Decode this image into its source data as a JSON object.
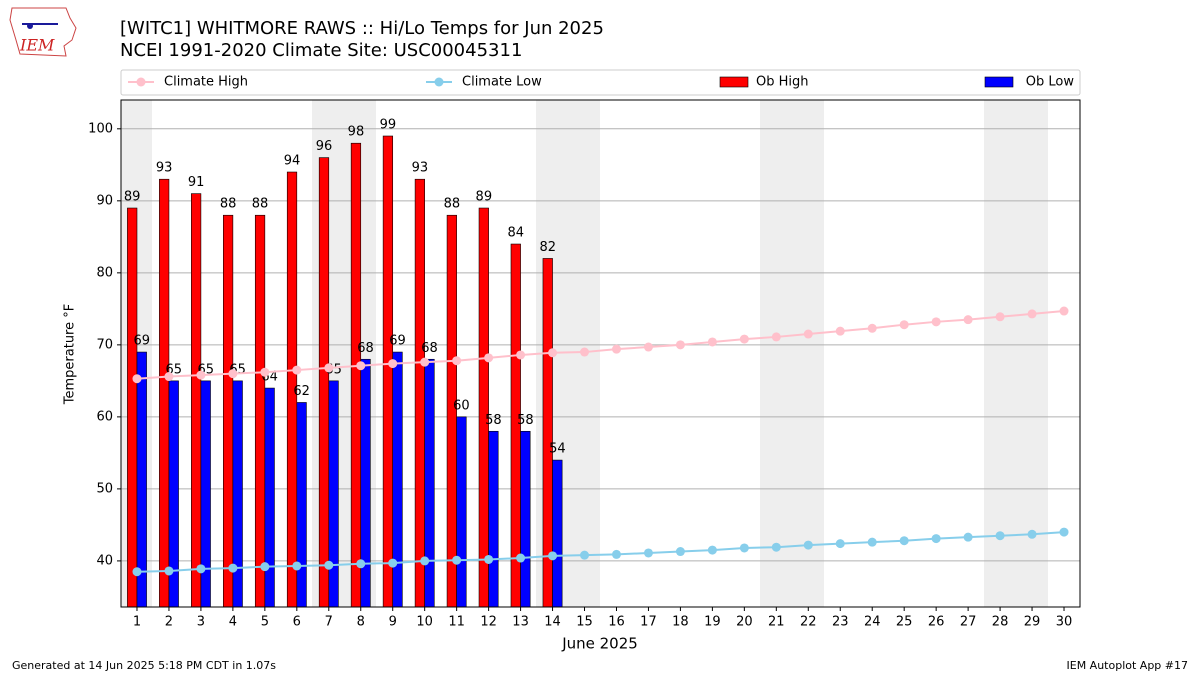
{
  "logo_text": "IEM",
  "footer_left": "Generated at 14 Jun 2025 5:18 PM CDT in 1.07s",
  "footer_right": "IEM Autoplot App #17",
  "chart_data": {
    "type": "bar",
    "title": "[WITC1] WHITMORE RAWS :: Hi/Lo Temps for Jun 2025",
    "subtitle": "NCEI 1991-2020 Climate Site: USC00045311",
    "x_label": "June 2025",
    "y_label": "Temperature °F",
    "x": [
      1,
      2,
      3,
      4,
      5,
      6,
      7,
      8,
      9,
      10,
      11,
      12,
      13,
      14,
      15,
      16,
      17,
      18,
      19,
      20,
      21,
      22,
      23,
      24,
      25,
      26,
      27,
      28,
      29,
      30
    ],
    "xlim": [
      0.5,
      30.5
    ],
    "ylim": [
      33.6,
      104.0
    ],
    "yticks": [
      40,
      50,
      60,
      70,
      80,
      90,
      100
    ],
    "grid": true,
    "series": [
      {
        "name": "Climate High",
        "type": "line",
        "color": "#ffc0cb",
        "values": [
          65.3,
          65.6,
          65.8,
          66.0,
          66.2,
          66.5,
          66.8,
          67.1,
          67.4,
          67.6,
          67.8,
          68.2,
          68.6,
          68.9,
          69.0,
          69.4,
          69.7,
          70.0,
          70.4,
          70.8,
          71.1,
          71.5,
          71.9,
          72.3,
          72.8,
          73.2,
          73.5,
          73.9,
          74.3,
          74.7
        ]
      },
      {
        "name": "Climate Low",
        "type": "line",
        "color": "#87ceeb",
        "values": [
          38.5,
          38.6,
          38.9,
          39.0,
          39.2,
          39.3,
          39.4,
          39.6,
          39.7,
          40.0,
          40.1,
          40.2,
          40.4,
          40.7,
          40.8,
          40.9,
          41.1,
          41.3,
          41.5,
          41.8,
          41.9,
          42.2,
          42.4,
          42.6,
          42.8,
          43.1,
          43.3,
          43.5,
          43.7,
          44.0
        ]
      },
      {
        "name": "Ob High",
        "type": "bar",
        "color": "#ff0000",
        "values": [
          89,
          93,
          91,
          88,
          88,
          94,
          96,
          98,
          99,
          93,
          88,
          89,
          84,
          82,
          null,
          null,
          null,
          null,
          null,
          null,
          null,
          null,
          null,
          null,
          null,
          null,
          null,
          null,
          null,
          null
        ]
      },
      {
        "name": "Ob Low",
        "type": "bar",
        "color": "#0000ff",
        "values": [
          69,
          65,
          65,
          65,
          64,
          62,
          65,
          68,
          69,
          68,
          60,
          58,
          58,
          54,
          null,
          null,
          null,
          null,
          null,
          null,
          null,
          null,
          null,
          null,
          null,
          null,
          null,
          null,
          null,
          null
        ]
      }
    ]
  }
}
